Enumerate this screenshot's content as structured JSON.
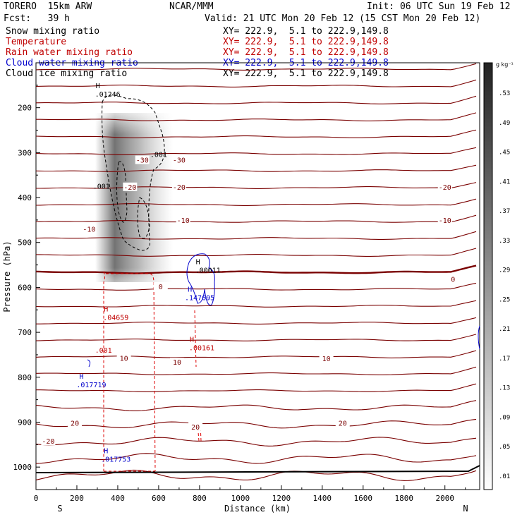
{
  "header": {
    "model": "TORERO  15km ARW",
    "center": "NCAR/MMM",
    "init": "Init: 06 UTC Sun 19 Feb 12",
    "fcst": "Fcst:   39 h",
    "valid": "Valid: 21 UTC Mon 20 Feb 12 (15 CST Mon 20 Feb 12)"
  },
  "fields": [
    {
      "name": "Snow mixing ratio",
      "xy": "XY= 222.9,  5.1 to 222.9,149.8",
      "color": "#000000"
    },
    {
      "name": "Temperature",
      "xy": "XY= 222.9,  5.1 to 222.9,149.8",
      "color": "#c00000"
    },
    {
      "name": "Rain water mixing ratio",
      "xy": "XY= 222.9,  5.1 to 222.9,149.8",
      "color": "#c00000"
    },
    {
      "name": "Cloud water mixing ratio",
      "xy": "XY= 222.9,  5.1 to 222.9,149.8",
      "color": "#0000cc"
    },
    {
      "name": "Cloud ice mixing ratio",
      "xy": "XY= 222.9,  5.1 to 222.9,149.8",
      "color": "#000000"
    }
  ],
  "chart_data": {
    "type": "cross-section",
    "xlabel": "Distance (km)",
    "ylabel": "Pressure (hPa)",
    "x_ticks": [
      0,
      200,
      400,
      600,
      800,
      1000,
      1200,
      1400,
      1600,
      1800,
      2000
    ],
    "y_ticks": [
      200,
      300,
      400,
      500,
      600,
      700,
      800,
      900,
      1000
    ],
    "xlim": [
      0,
      2170
    ],
    "ylim": [
      1050,
      100
    ],
    "y_scale": "linear",
    "endpoints": {
      "left": "S",
      "right": "N"
    },
    "colorbar": {
      "unit": "g kg⁻¹",
      "labels": [
        ".53",
        ".49",
        ".45",
        ".41",
        ".37",
        ".33",
        ".29",
        ".25",
        ".21",
        ".17",
        ".13",
        ".09",
        ".05",
        ".01"
      ]
    },
    "temperature_labels": [
      {
        "x": 520,
        "p": 316,
        "text": "-30"
      },
      {
        "x": 700,
        "p": 316,
        "text": "-30"
      },
      {
        "x": 460,
        "p": 376,
        "text": "-20"
      },
      {
        "x": 700,
        "p": 376,
        "text": "-20"
      },
      {
        "x": 2000,
        "p": 376,
        "text": "-20"
      },
      {
        "x": 260,
        "p": 470,
        "text": "-10"
      },
      {
        "x": 720,
        "p": 450,
        "text": "-10"
      },
      {
        "x": 2000,
        "p": 450,
        "text": "-10"
      },
      {
        "x": 610,
        "p": 598,
        "text": "0"
      },
      {
        "x": 2040,
        "p": 581,
        "text": "0"
      },
      {
        "x": 430,
        "p": 757,
        "text": "10"
      },
      {
        "x": 690,
        "p": 766,
        "text": "10"
      },
      {
        "x": 1420,
        "p": 758,
        "text": "10"
      },
      {
        "x": 190,
        "p": 902,
        "text": "20"
      },
      {
        "x": 780,
        "p": 910,
        "text": "20"
      },
      {
        "x": 1500,
        "p": 902,
        "text": "20"
      },
      {
        "x": 60,
        "p": 942,
        "text": "-20"
      }
    ],
    "maxima": [
      {
        "x": 330,
        "p": 175,
        "text": ".01246",
        "color": "#000000"
      },
      {
        "x": 820,
        "p": 567,
        "text": ".00011",
        "color": "#000000"
      },
      {
        "x": 780,
        "p": 628,
        "text": ".147695",
        "color": "#0000cc"
      },
      {
        "x": 370,
        "p": 672,
        "text": ".04659",
        "color": "#c00000"
      },
      {
        "x": 790,
        "p": 740,
        "text": ".00161",
        "color": "#c00000"
      },
      {
        "x": 250,
        "p": 822,
        "text": ".017719",
        "color": "#0000cc"
      },
      {
        "x": 370,
        "p": 988,
        "text": ".017753",
        "color": "#0000cc"
      }
    ],
    "contour_value_labels": [
      {
        "x": 600,
        "p": 310,
        "text": ".001",
        "color": "#000000"
      },
      {
        "x": 320,
        "p": 380,
        "text": ".001",
        "color": "#000000"
      },
      {
        "x": 330,
        "p": 745,
        "text": ".001",
        "color": "#c00000"
      }
    ]
  }
}
